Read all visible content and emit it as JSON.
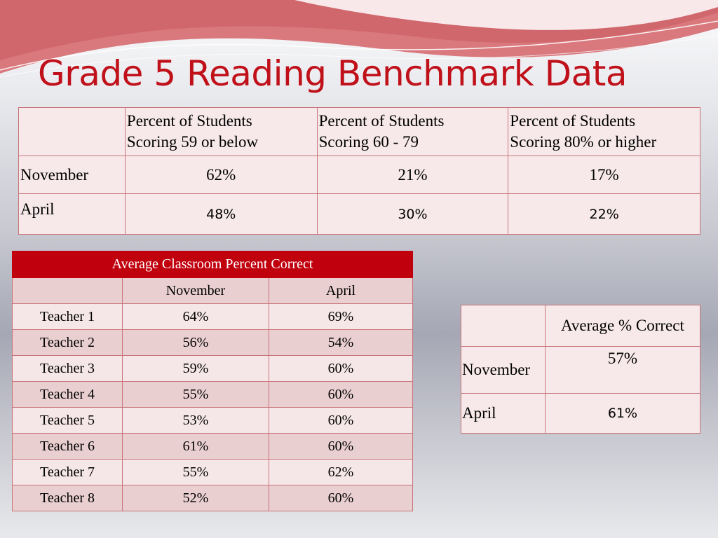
{
  "title": "Grade 5 Reading Benchmark Data",
  "benchmark_table": {
    "headers": [
      "",
      "Percent of Students Scoring  59 or below",
      "Percent of Students Scoring  60 - 79",
      "Percent of Students Scoring  80%  or higher"
    ],
    "header_lines": [
      [
        "Percent of Students",
        "Scoring  59 or below"
      ],
      [
        "Percent of Students",
        "Scoring  60 - 79"
      ],
      [
        "Percent of Students",
        "Scoring  80%  or higher"
      ]
    ],
    "rows": [
      {
        "label": "November",
        "values": [
          "62%",
          "21%",
          "17%"
        ]
      },
      {
        "label": "April",
        "values": [
          "48%",
          "30%",
          "22%"
        ]
      }
    ]
  },
  "classroom_table": {
    "title": "Average Classroom Percent Correct",
    "columns": [
      "",
      "November",
      "April"
    ],
    "rows": [
      {
        "teacher": "Teacher 1",
        "november": "64%",
        "april": "69%"
      },
      {
        "teacher": "Teacher 2",
        "november": "56%",
        "april": "54%"
      },
      {
        "teacher": "Teacher 3",
        "november": "59%",
        "april": "60%"
      },
      {
        "teacher": "Teacher 4",
        "november": "55%",
        "april": "60%"
      },
      {
        "teacher": "Teacher 5",
        "november": "53%",
        "april": "60%"
      },
      {
        "teacher": "Teacher 6",
        "november": "61%",
        "april": "60%"
      },
      {
        "teacher": "Teacher 7",
        "november": "55%",
        "april": "62%"
      },
      {
        "teacher": "Teacher 8",
        "november": "52%",
        "april": "60%"
      }
    ]
  },
  "average_table": {
    "header": "Average % Correct",
    "rows": [
      {
        "label": "November",
        "value": "57%"
      },
      {
        "label": "April",
        "value": "61%"
      }
    ]
  },
  "colors": {
    "accent": "#c0101a",
    "header_fill": "#c0000d",
    "cell_fill": "#f7e9ea",
    "band_fill": "#e9cfd0",
    "border": "#c9737a"
  }
}
